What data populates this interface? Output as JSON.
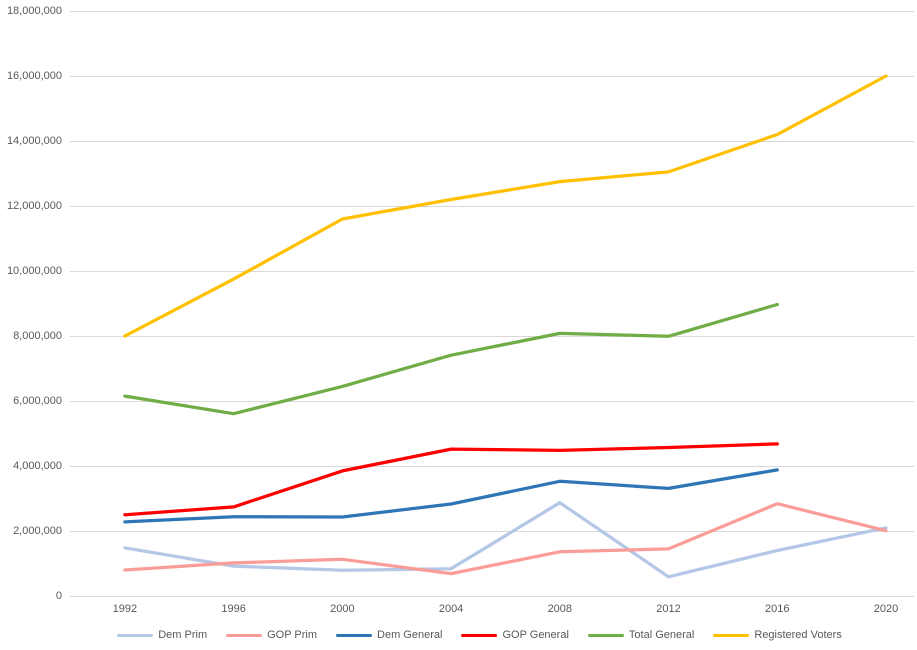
{
  "chart": {
    "background": "#FFFFFF",
    "axis_text_color": "#595959",
    "gridline_color": "#D9D9D9"
  },
  "chart_data": {
    "type": "line",
    "title": "",
    "xlabel": "",
    "ylabel": "",
    "grid": true,
    "legend_position": "bottom",
    "x": [
      1992,
      1996,
      2000,
      2004,
      2008,
      2012,
      2016,
      2020
    ],
    "x_tick_labels": [
      "1992",
      "1996",
      "2000",
      "2004",
      "2008",
      "2012",
      "2016",
      "2020"
    ],
    "ylim": [
      0,
      18000000
    ],
    "ytick_step": 2000000,
    "y_tick_labels": [
      "0",
      "2,000,000",
      "4,000,000",
      "6,000,000",
      "8,000,000",
      "10,000,000",
      "12,000,000",
      "14,000,000",
      "16,000,000",
      "18,000,000"
    ],
    "series": [
      {
        "name": "Dem Prim",
        "color": "#B4C7E7",
        "values": [
          1480000,
          920000,
          790000,
          840000,
          2870000,
          590000,
          1400000,
          2100000
        ]
      },
      {
        "name": "GOP Prim",
        "color": "#FA9D98",
        "values": [
          800000,
          1020000,
          1130000,
          690000,
          1360000,
          1450000,
          2840000,
          2010000
        ]
      },
      {
        "name": "Dem General",
        "color": "#2E75B6",
        "values": [
          2280000,
          2440000,
          2430000,
          2830000,
          3530000,
          3310000,
          3880000,
          null
        ]
      },
      {
        "name": "GOP General",
        "color": "#FF0000",
        "values": [
          2500000,
          2740000,
          3850000,
          4520000,
          4480000,
          4570000,
          4680000,
          null
        ]
      },
      {
        "name": "Total General",
        "color": "#70AD47",
        "values": [
          6150000,
          5610000,
          6450000,
          7410000,
          8080000,
          7990000,
          8970000,
          null
        ]
      },
      {
        "name": "Registered Voters",
        "color": "#FFC000",
        "values": [
          8000000,
          9750000,
          11600000,
          12200000,
          12750000,
          13050000,
          14200000,
          16000000
        ]
      }
    ]
  }
}
